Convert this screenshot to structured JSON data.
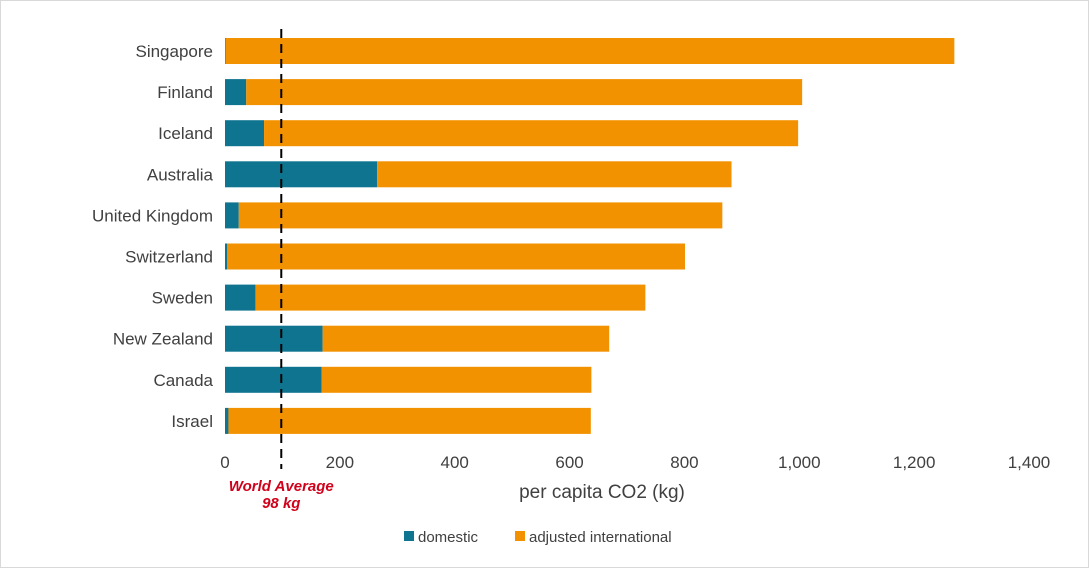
{
  "chart_data": {
    "type": "bar",
    "orientation": "horizontal",
    "stacked": true,
    "categories": [
      "Singapore",
      "Finland",
      "Iceland",
      "Australia",
      "United Kingdom",
      "Switzerland",
      "Sweden",
      "New Zealand",
      "Canada",
      "Israel"
    ],
    "series": [
      {
        "name": "domestic",
        "color": "#0e7490",
        "values": [
          1,
          37,
          68,
          265,
          24,
          4,
          53,
          170,
          168,
          6
        ]
      },
      {
        "name": "adjusted international",
        "color": "#f39200",
        "values": [
          1269,
          968,
          930,
          617,
          842,
          797,
          679,
          499,
          470,
          631
        ]
      }
    ],
    "xlabel": "per capita CO2 (kg)",
    "xlim": [
      0,
      1400
    ],
    "xticks": [
      0,
      200,
      400,
      600,
      800,
      1000,
      1200,
      1400
    ],
    "xtick_labels": [
      "0",
      "200",
      "400",
      "600",
      "800",
      "1,000",
      "1,200",
      "1,400"
    ],
    "reference_line": {
      "value": 98,
      "label_line1": "World Average",
      "label_line2": "98 kg",
      "style": "dashed",
      "color": "#000000",
      "label_color": "#d0021b"
    },
    "grid": false,
    "legend": "bottom"
  }
}
